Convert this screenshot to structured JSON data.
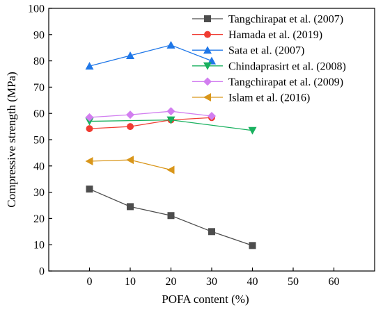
{
  "chart_data": {
    "type": "line",
    "xlabel": "POFA content (%)",
    "ylabel": "Compressive strength (MPa)",
    "xlim": [
      -10,
      70
    ],
    "ylim": [
      0,
      100
    ],
    "xticks": [
      0,
      10,
      20,
      30,
      40,
      50,
      60
    ],
    "yticks": [
      0,
      10,
      20,
      30,
      40,
      50,
      60,
      70,
      80,
      90,
      100
    ],
    "grid": false,
    "legend_position": "top-right",
    "series": [
      {
        "name": "Tangchirapat et al. (2007)",
        "color": "#4d4d4d",
        "marker": "square",
        "x": [
          0,
          10,
          20,
          30,
          40
        ],
        "y": [
          31.2,
          24.5,
          21.1,
          15.0,
          9.7
        ]
      },
      {
        "name": "Hamada et al. (2019)",
        "color": "#f03c32",
        "marker": "circle",
        "x": [
          0,
          10,
          20,
          30
        ],
        "y": [
          54.2,
          55.0,
          57.5,
          58.4
        ]
      },
      {
        "name": "Sata et al. (2007)",
        "color": "#1f77e8",
        "marker": "triangle-up",
        "x": [
          0,
          10,
          20,
          30
        ],
        "y": [
          78.0,
          82.0,
          86.0,
          80.0
        ]
      },
      {
        "name": "Chindaprasirt et al. (2008)",
        "color": "#19b15f",
        "marker": "triangle-down",
        "x": [
          0,
          20,
          40
        ],
        "y": [
          57.0,
          57.5,
          53.5
        ]
      },
      {
        "name": "Tangchirapat et al. (2009)",
        "color": "#d27ef0",
        "marker": "diamond",
        "x": [
          0,
          10,
          20,
          30
        ],
        "y": [
          58.5,
          59.5,
          60.8,
          59.0
        ]
      },
      {
        "name": "Islam et al. (2016)",
        "color": "#d9961a",
        "marker": "triangle-left",
        "x": [
          0,
          10,
          20
        ],
        "y": [
          41.8,
          42.3,
          38.5
        ]
      }
    ]
  }
}
